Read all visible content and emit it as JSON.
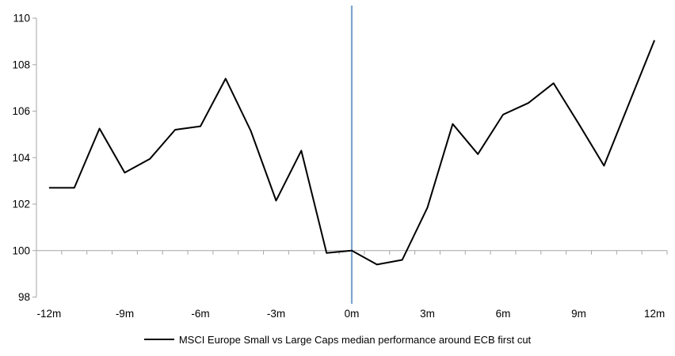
{
  "chart_data": {
    "type": "line",
    "title": "",
    "xlabel": "",
    "ylabel": "",
    "ylim": [
      98,
      110
    ],
    "y_ticks": [
      98,
      100,
      102,
      104,
      106,
      108,
      110
    ],
    "x": [
      -12,
      -11,
      -10,
      -9,
      -8,
      -7,
      -6,
      -5,
      -4,
      -3,
      -2,
      -1,
      0,
      1,
      2,
      3,
      4,
      5,
      6,
      7,
      8,
      9,
      10,
      11,
      12
    ],
    "x_tick_months": [
      -12,
      -9,
      -6,
      -3,
      0,
      3,
      6,
      9,
      12
    ],
    "x_tick_labels": [
      "-12m",
      "-9m",
      "-6m",
      "-3m",
      "0m",
      "3m",
      "6m",
      "9m",
      "12m"
    ],
    "series": [
      {
        "name": "MSCI Europe Small vs Large Caps median performance around ECB first cut",
        "color": "#000000",
        "values": [
          102.7,
          102.7,
          105.25,
          103.35,
          103.95,
          105.2,
          105.35,
          107.4,
          105.15,
          102.15,
          104.3,
          99.9,
          100.0,
          99.4,
          99.6,
          101.85,
          105.45,
          104.15,
          105.85,
          106.35,
          107.2,
          105.45,
          103.65,
          106.35,
          109.05
        ]
      }
    ],
    "event_line": {
      "x_month": 0,
      "color": "#7EA6CF"
    },
    "baseline_value": 100,
    "axis_color": "#A6A6A6",
    "label_color": "#000000",
    "grid": "off",
    "legend_position": "bottom-center"
  }
}
